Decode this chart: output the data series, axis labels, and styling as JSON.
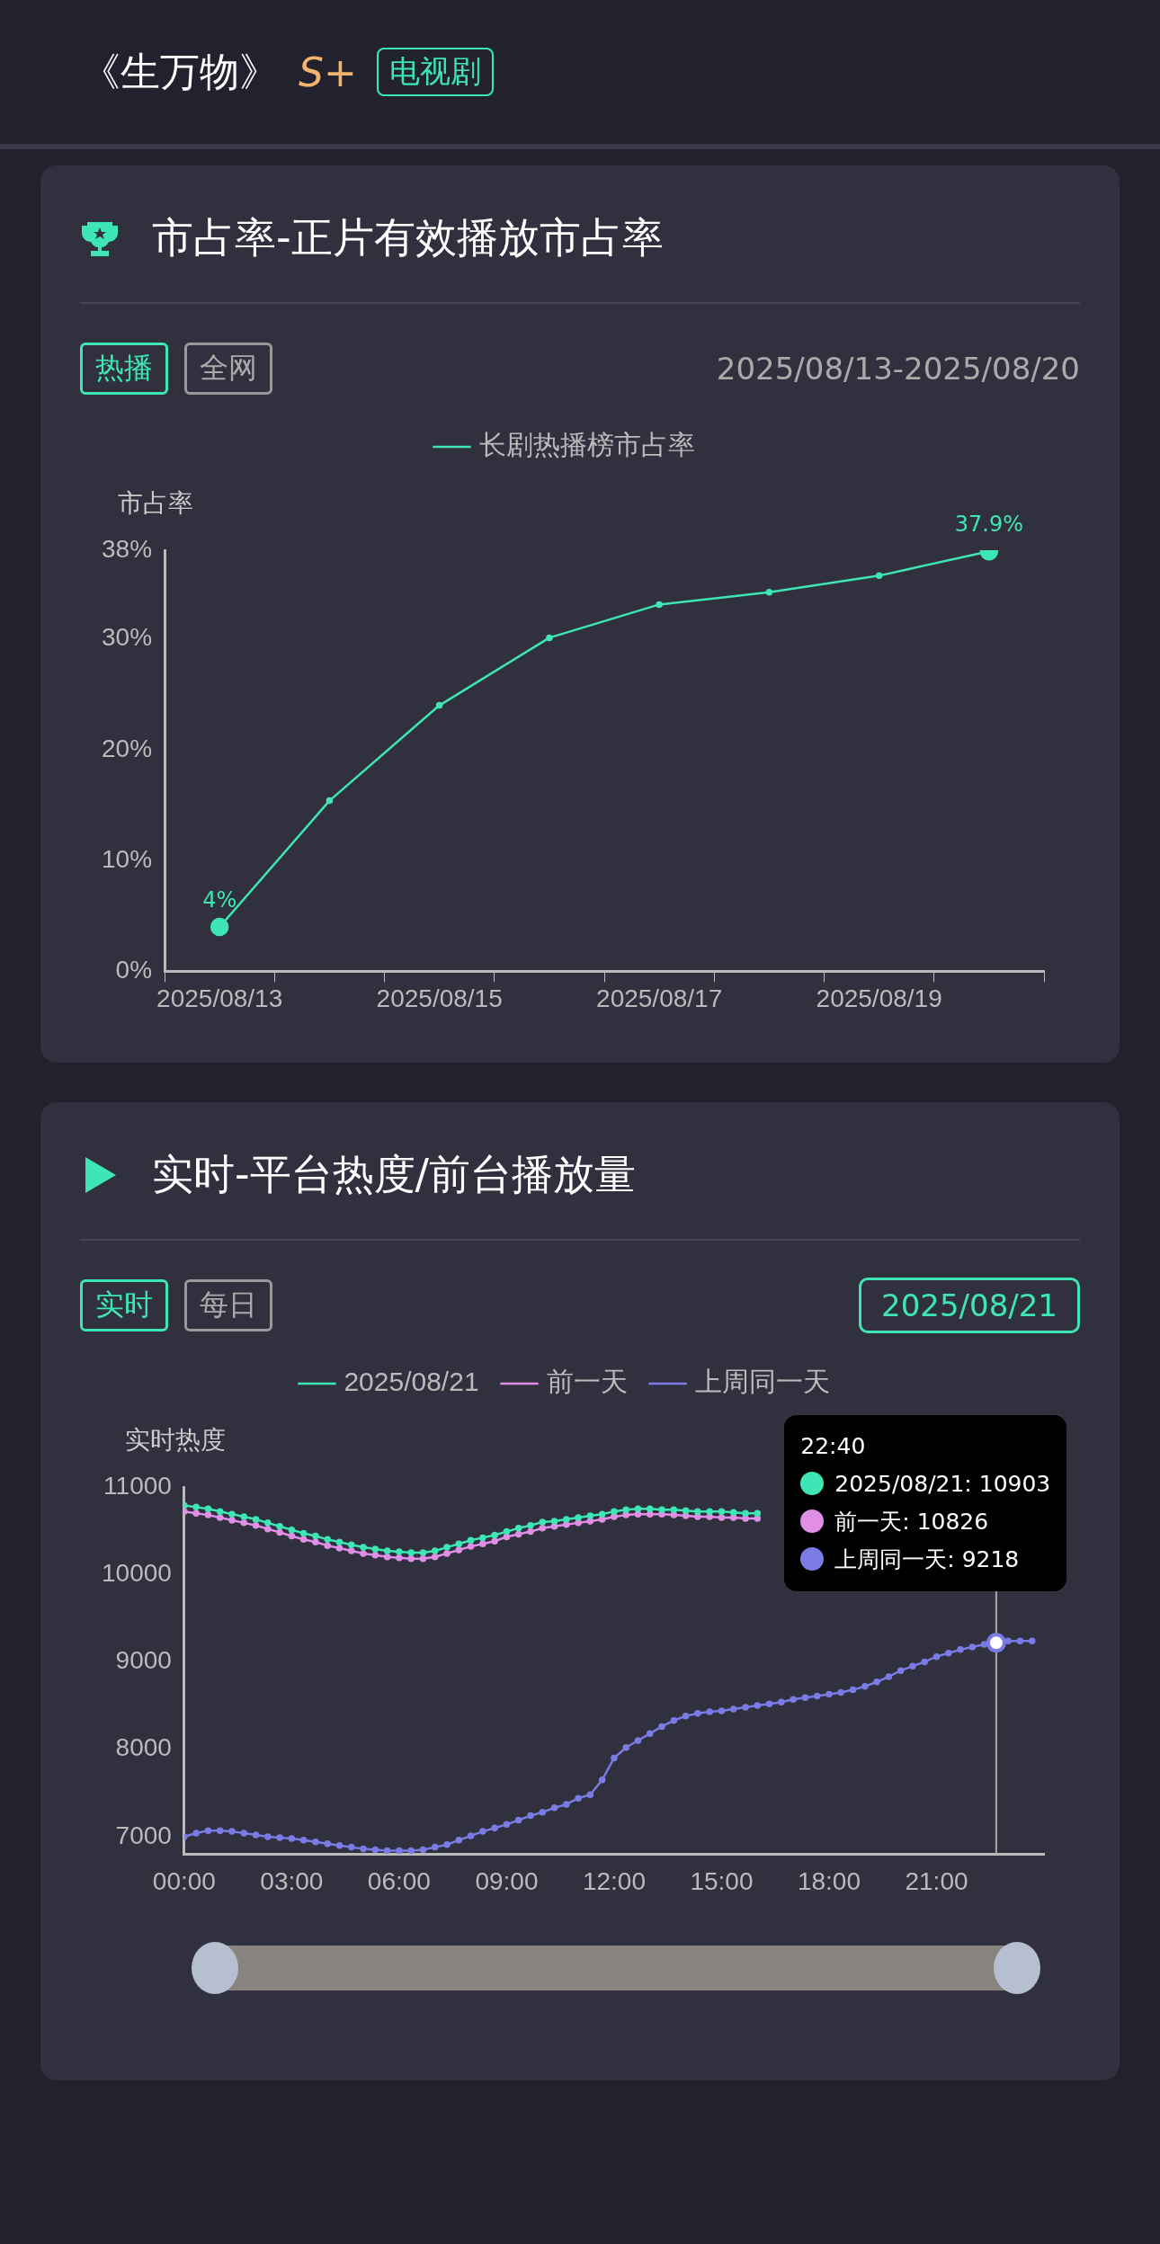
{
  "chart_data": [
    {
      "type": "line",
      "title": "市占率-正片有效播放市占率",
      "subtitle": "2025/08/13-2025/08/20",
      "annotations": [
        "《生万物》",
        "S+",
        "电视剧",
        "热播",
        "全网"
      ],
      "categories": [
        "2025/08/13",
        null,
        "2025/08/15",
        null,
        "2025/08/17",
        null,
        "2025/08/19",
        null
      ],
      "series": [
        {
          "name": "长剧热播榜市占率",
          "color": "#3ee6b5",
          "values": [
            4,
            15.4,
            24.0,
            30.1,
            33.1,
            34.2,
            35.7,
            37.9
          ],
          "value_labels": [
            "4%",
            null,
            null,
            null,
            null,
            null,
            null,
            "37.9%"
          ]
        }
      ],
      "ylabel": "市占率",
      "ylim": [
        0,
        38
      ],
      "yticks": [
        {
          "value": 0,
          "label": "0%"
        },
        {
          "value": 10,
          "label": "10%"
        },
        {
          "value": 20,
          "label": "20%"
        },
        {
          "value": 30,
          "label": "30%"
        },
        {
          "value": 38,
          "label": "38%"
        }
      ],
      "legend": "top",
      "marker": "circle",
      "grid": false
    },
    {
      "type": "line",
      "title": "实时-平台热度/前台播放量",
      "annotations": [
        "实时",
        "每日",
        "2025/08/21",
        "22:40",
        "2025/08/21: 10903",
        "前一天: 10826",
        "上周同一天: 9218"
      ],
      "x": [
        0,
        0.333,
        0.667,
        1,
        1.333,
        1.667,
        2,
        2.333,
        2.667,
        3,
        3.333,
        3.667,
        4,
        4.333,
        4.667,
        5,
        5.333,
        5.667,
        6,
        6.333,
        6.667,
        7,
        7.333,
        7.667,
        8,
        8.333,
        8.667,
        9,
        9.333,
        9.667,
        10,
        10.333,
        10.667,
        11,
        11.333,
        11.667,
        12,
        12.333,
        12.667,
        13,
        13.333,
        13.667,
        14,
        14.333,
        14.667,
        15,
        15.333,
        15.667,
        16,
        16.333,
        16.667,
        17,
        17.333,
        17.667,
        18,
        18.333,
        18.667,
        19,
        19.333,
        19.667,
        20,
        20.333,
        20.667,
        21,
        21.333,
        21.667,
        22,
        22.333,
        22.6667,
        23,
        23.333,
        23.667
      ],
      "series": [
        {
          "name": "2025/08/21",
          "color": "#3ee6b5",
          "values": [
            10790,
            10770,
            10750,
            10720,
            10690,
            10660,
            10630,
            10590,
            10550,
            10510,
            10470,
            10440,
            10400,
            10370,
            10340,
            10310,
            10290,
            10270,
            10260,
            10250,
            10250,
            10270,
            10310,
            10350,
            10390,
            10420,
            10450,
            10490,
            10530,
            10560,
            10600,
            10610,
            10630,
            10650,
            10670,
            10690,
            10720,
            10740,
            10750,
            10750,
            10740,
            10740,
            10730,
            10720,
            10720,
            10720,
            10710,
            10700,
            10700,
            null,
            null,
            null,
            null,
            null,
            null,
            null,
            null,
            null,
            null,
            null,
            null,
            null,
            null,
            null,
            null,
            null,
            null,
            null,
            null,
            null,
            null,
            null
          ]
        },
        {
          "name": "前一天",
          "color": "#e08ee6",
          "values": [
            10720,
            10700,
            10680,
            10650,
            10620,
            10590,
            10560,
            10520,
            10480,
            10440,
            10400,
            10370,
            10330,
            10300,
            10270,
            10240,
            10220,
            10200,
            10190,
            10180,
            10180,
            10200,
            10240,
            10280,
            10320,
            10350,
            10380,
            10430,
            10460,
            10490,
            10530,
            10550,
            10570,
            10590,
            10610,
            10630,
            10660,
            10680,
            10690,
            10690,
            10690,
            10680,
            10670,
            10660,
            10660,
            10650,
            10650,
            10640,
            10640,
            null,
            null,
            null,
            null,
            null,
            null,
            null,
            null,
            null,
            null,
            null,
            null,
            null,
            null,
            null,
            null,
            null,
            null,
            null,
            null,
            null,
            null,
            null
          ]
        },
        {
          "name": "上周同一天",
          "color": "#7b7be6",
          "values": [
            7000,
            7040,
            7070,
            7070,
            7060,
            7040,
            7020,
            7000,
            6990,
            6980,
            6960,
            6940,
            6920,
            6900,
            6880,
            6860,
            6850,
            6840,
            6840,
            6840,
            6850,
            6880,
            6910,
            6960,
            7010,
            7060,
            7100,
            7140,
            7190,
            7240,
            7280,
            7330,
            7370,
            7440,
            7480,
            7650,
            7900,
            8020,
            8100,
            8180,
            8260,
            8330,
            8380,
            8410,
            8430,
            8440,
            8460,
            8480,
            8500,
            8520,
            8540,
            8570,
            8590,
            8610,
            8630,
            8650,
            8680,
            8720,
            8770,
            8830,
            8900,
            8950,
            9000,
            9060,
            9100,
            9140,
            9170,
            9200,
            9218,
            9240,
            9240,
            9240
          ]
        }
      ],
      "ylabel": "实时热度",
      "xlim": [
        0,
        24
      ],
      "xticks": [
        {
          "value": 0,
          "label": "00:00"
        },
        {
          "value": 3,
          "label": "03:00"
        },
        {
          "value": 6,
          "label": "06:00"
        },
        {
          "value": 9,
          "label": "09:00"
        },
        {
          "value": 12,
          "label": "12:00"
        },
        {
          "value": 15,
          "label": "15:00"
        },
        {
          "value": 18,
          "label": "18:00"
        },
        {
          "value": 21,
          "label": "21:00"
        }
      ],
      "ylim": [
        6800,
        11000
      ],
      "yticks": [
        7000,
        8000,
        9000,
        10000,
        11000
      ],
      "ref_lines": [
        {
          "axis": "x",
          "value": 22.6667,
          "color": "#aaaaaa"
        }
      ],
      "legend": "top",
      "marker": "circle",
      "grid": false
    }
  ]
}
